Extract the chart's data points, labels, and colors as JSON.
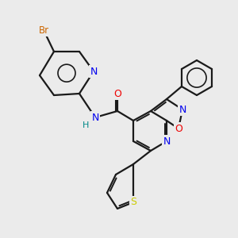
{
  "background_color": "#ebebeb",
  "bond_color": "#1a1a1a",
  "atom_colors": {
    "N": "#0000ee",
    "O": "#ee0000",
    "S": "#cccc00",
    "Br": "#cc6600",
    "H": "#008888",
    "C": "#1a1a1a"
  },
  "figsize": [
    3.0,
    3.0
  ],
  "dpi": 100
}
